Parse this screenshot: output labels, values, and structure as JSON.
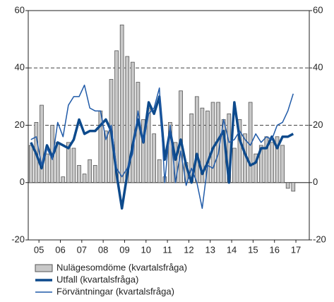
{
  "chart_data": {
    "type": "bar-line",
    "x": [
      2005,
      2005.25,
      2005.5,
      2005.75,
      2006,
      2006.25,
      2006.5,
      2006.75,
      2007,
      2007.25,
      2007.5,
      2007.75,
      2008,
      2008.25,
      2008.5,
      2008.75,
      2009,
      2009.25,
      2009.5,
      2009.75,
      2010,
      2010.25,
      2010.5,
      2010.75,
      2011,
      2011.25,
      2011.5,
      2011.75,
      2012,
      2012.25,
      2012.5,
      2012.75,
      2013,
      2013.25,
      2013.5,
      2013.75,
      2014,
      2014.25,
      2014.5,
      2014.75,
      2015,
      2015.25,
      2015.5,
      2015.75,
      2016,
      2016.25,
      2016.5,
      2016.75,
      2017,
      2017.25
    ],
    "series": [
      {
        "name": "Nulägesomdöme (kvartalsfråga)",
        "type": "bar",
        "color": "#c8c8c8",
        "edge": "#555555",
        "values": [
          13,
          21,
          27,
          10,
          20,
          14,
          2,
          14,
          12,
          6,
          3,
          8,
          6,
          25,
          18,
          36,
          46,
          55,
          44,
          42,
          35,
          22,
          26,
          17,
          8,
          2,
          21,
          14,
          32,
          7,
          24,
          30,
          26,
          25,
          28,
          28,
          22,
          24,
          12,
          22,
          17,
          28,
          10,
          13,
          16,
          14,
          16,
          13,
          -2,
          -3
        ]
      },
      {
        "name": "Utfall (kvartalsfråga)",
        "type": "line",
        "color": "#0d4a8c",
        "width": 3.5,
        "values": [
          14,
          10,
          5,
          13,
          9,
          14,
          13,
          12,
          15,
          22,
          17,
          18,
          18,
          20,
          22,
          18,
          3,
          -9,
          3,
          13,
          22,
          14,
          28,
          24,
          30,
          8,
          18,
          8,
          15,
          6,
          0,
          10,
          3,
          7,
          12,
          15,
          18,
          0,
          28,
          15,
          10,
          6,
          7,
          12,
          12,
          16,
          12,
          16,
          16,
          17
        ]
      },
      {
        "name": "Förväntningar (kvartalsfråga)",
        "type": "line",
        "color": "#1f5aa8",
        "width": 1.5,
        "values": [
          15,
          16,
          6,
          12,
          8,
          21,
          16,
          27,
          30,
          30,
          34,
          26,
          25,
          25,
          15,
          20,
          5,
          2,
          5,
          10,
          25,
          14,
          24,
          26,
          33,
          0,
          20,
          0,
          11,
          -1,
          5,
          0,
          -9,
          6,
          5,
          10,
          22,
          14,
          15,
          18,
          15,
          13,
          17,
          14,
          16,
          15,
          20,
          21,
          25,
          31
        ]
      }
    ],
    "xlim": [
      2004.875,
      2018
    ],
    "xticks": [
      {
        "value": 2005.375,
        "label": "05"
      },
      {
        "value": 2006.375,
        "label": "06"
      },
      {
        "value": 2007.375,
        "label": "07"
      },
      {
        "value": 2008.375,
        "label": "08"
      },
      {
        "value": 2009.375,
        "label": "09"
      },
      {
        "value": 2010.375,
        "label": "10"
      },
      {
        "value": 2011.375,
        "label": "11"
      },
      {
        "value": 2012.375,
        "label": "12"
      },
      {
        "value": 2013.375,
        "label": "13"
      },
      {
        "value": 2014.375,
        "label": "14"
      },
      {
        "value": 2015.375,
        "label": "15"
      },
      {
        "value": 2016.375,
        "label": "16"
      },
      {
        "value": 2017.375,
        "label": "17"
      }
    ],
    "ylim": [
      -20,
      60
    ],
    "yticks": [
      -20,
      0,
      20,
      40,
      60
    ],
    "grid": true
  }
}
